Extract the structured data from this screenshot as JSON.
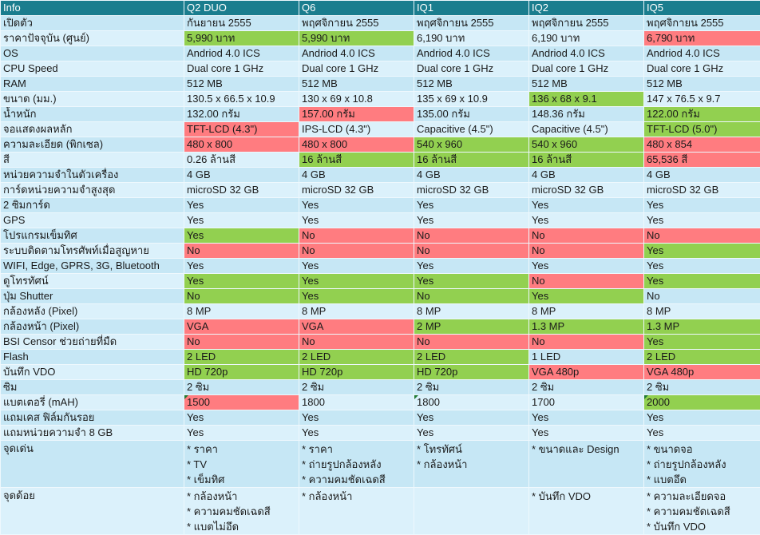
{
  "header": {
    "columns": [
      "Info",
      "Q2 DUO",
      "Q6",
      "IQ1",
      "IQ2",
      "IQ5"
    ]
  },
  "colors": {
    "header_bg": "#1a7d8e",
    "header_text": "#ffffff",
    "row_odd": "#c6e7f5",
    "row_even": "#dbf1fb",
    "good": "#92d050",
    "bad": "#ff7c80",
    "grid_line": "#eef8fd",
    "error_marker": "#1f7a33",
    "text": "#1a1a1a"
  },
  "rows": [
    {
      "label": "เปิดตัว",
      "cells": [
        {
          "text": "กันยายน 2555"
        },
        {
          "text": "พฤศจิกายน 2555"
        },
        {
          "text": "พฤศจิกายน 2555"
        },
        {
          "text": "พฤศจิกายน 2555"
        },
        {
          "text": "พฤศจิกายน 2555"
        }
      ]
    },
    {
      "label": "ราคาปัจจุบัน (ศูนย์)",
      "cells": [
        {
          "text": "5,990 บาท",
          "highlight": "good"
        },
        {
          "text": "5,990 บาท",
          "highlight": "good"
        },
        {
          "text": "6,190 บาท"
        },
        {
          "text": "6,190 บาท"
        },
        {
          "text": "6,790 บาท",
          "highlight": "bad"
        }
      ]
    },
    {
      "label": "OS",
      "cells": [
        {
          "text": "Andriod 4.0 ICS"
        },
        {
          "text": "Andriod 4.0 ICS"
        },
        {
          "text": "Andriod 4.0 ICS"
        },
        {
          "text": "Andriod 4.0 ICS"
        },
        {
          "text": "Andriod 4.0 ICS"
        }
      ]
    },
    {
      "label": "CPU Speed",
      "cells": [
        {
          "text": "Dual core 1 GHz"
        },
        {
          "text": "Dual core 1 GHz"
        },
        {
          "text": "Dual core 1 GHz"
        },
        {
          "text": "Dual core 1 GHz"
        },
        {
          "text": "Dual core 1 GHz"
        }
      ]
    },
    {
      "label": "RAM",
      "cells": [
        {
          "text": "512 MB"
        },
        {
          "text": "512 MB"
        },
        {
          "text": "512 MB"
        },
        {
          "text": "512 MB"
        },
        {
          "text": "512 MB"
        }
      ]
    },
    {
      "label": "ขนาด (มม.)",
      "cells": [
        {
          "text": "130.5 x 66.5 x 10.9"
        },
        {
          "text": "130 x 69 x 10.8"
        },
        {
          "text": "135 x 69 x 10.9"
        },
        {
          "text": "136 x 68 x 9.1",
          "highlight": "good"
        },
        {
          "text": "147 x 76.5 x 9.7"
        }
      ]
    },
    {
      "label": "น้ำหนัก",
      "cells": [
        {
          "text": "132.00 กรัม"
        },
        {
          "text": "157.00 กรัม",
          "highlight": "bad"
        },
        {
          "text": "135.00 กรัม"
        },
        {
          "text": "148.36 กรัม"
        },
        {
          "text": "122.00 กรัม",
          "highlight": "good"
        }
      ]
    },
    {
      "label": "จอแสดงผลหลัก",
      "cells": [
        {
          "text": "TFT-LCD (4.3\")",
          "highlight": "bad"
        },
        {
          "text": "IPS-LCD (4.3\")"
        },
        {
          "text": "Capacitive (4.5\")"
        },
        {
          "text": "Capacitive (4.5\")"
        },
        {
          "text": "TFT-LCD (5.0\")",
          "highlight": "good"
        }
      ]
    },
    {
      "label": "ความละเอียด (พิกเซล)",
      "cells": [
        {
          "text": "480 x 800",
          "highlight": "bad"
        },
        {
          "text": "480 x 800",
          "highlight": "bad"
        },
        {
          "text": "540 x 960",
          "highlight": "good"
        },
        {
          "text": "540 x 960",
          "highlight": "good"
        },
        {
          "text": "480 x 854",
          "highlight": "bad"
        }
      ]
    },
    {
      "label": "สี",
      "cells": [
        {
          "text": "0.26 ล้านสี"
        },
        {
          "text": "16 ล้านสี",
          "highlight": "good"
        },
        {
          "text": "16 ล้านสี",
          "highlight": "good"
        },
        {
          "text": "16 ล้านสี",
          "highlight": "good"
        },
        {
          "text": "65,536 สี",
          "highlight": "bad"
        }
      ]
    },
    {
      "label": "หน่วยความจำในตัวเครื่อง",
      "cells": [
        {
          "text": "4 GB"
        },
        {
          "text": "4 GB"
        },
        {
          "text": "4 GB"
        },
        {
          "text": "4 GB"
        },
        {
          "text": "4 GB"
        }
      ]
    },
    {
      "label": "การ์ดหน่วยความจำสูงสุด",
      "cells": [
        {
          "text": "microSD 32 GB"
        },
        {
          "text": "microSD 32 GB"
        },
        {
          "text": "microSD 32 GB"
        },
        {
          "text": "microSD 32 GB"
        },
        {
          "text": "microSD 32 GB"
        }
      ]
    },
    {
      "label": "2 ซิมการ์ด",
      "cells": [
        {
          "text": "Yes"
        },
        {
          "text": "Yes"
        },
        {
          "text": "Yes"
        },
        {
          "text": "Yes"
        },
        {
          "text": "Yes"
        }
      ]
    },
    {
      "label": "GPS",
      "cells": [
        {
          "text": "Yes"
        },
        {
          "text": "Yes"
        },
        {
          "text": "Yes"
        },
        {
          "text": "Yes"
        },
        {
          "text": "Yes"
        }
      ]
    },
    {
      "label": "โปรแกรมเข็มทิศ",
      "cells": [
        {
          "text": "Yes",
          "highlight": "good"
        },
        {
          "text": "No",
          "highlight": "bad"
        },
        {
          "text": "No",
          "highlight": "bad"
        },
        {
          "text": "No",
          "highlight": "bad"
        },
        {
          "text": "No",
          "highlight": "bad"
        }
      ]
    },
    {
      "label": "ระบบติดตามโทรศัพท์เมื่อสูญหาย",
      "cells": [
        {
          "text": "No",
          "highlight": "bad"
        },
        {
          "text": "No",
          "highlight": "bad"
        },
        {
          "text": "No",
          "highlight": "bad"
        },
        {
          "text": "No",
          "highlight": "bad"
        },
        {
          "text": "Yes",
          "highlight": "good"
        }
      ]
    },
    {
      "label": "WIFI, Edge, GPRS, 3G, Bluetooth",
      "cells": [
        {
          "text": "Yes"
        },
        {
          "text": "Yes"
        },
        {
          "text": "Yes"
        },
        {
          "text": "Yes"
        },
        {
          "text": "Yes"
        }
      ]
    },
    {
      "label": "ดูโทรทัศน์",
      "cells": [
        {
          "text": "Yes",
          "highlight": "good"
        },
        {
          "text": "Yes",
          "highlight": "good"
        },
        {
          "text": "Yes",
          "highlight": "good"
        },
        {
          "text": "No",
          "highlight": "bad"
        },
        {
          "text": "Yes",
          "highlight": "good"
        }
      ]
    },
    {
      "label": "ปุ่ม Shutter",
      "cells": [
        {
          "text": "No",
          "highlight": "good"
        },
        {
          "text": "Yes",
          "highlight": "good"
        },
        {
          "text": "No",
          "highlight": "good"
        },
        {
          "text": "Yes",
          "highlight": "good"
        },
        {
          "text": "No"
        }
      ]
    },
    {
      "label": "กล้องหลัง (Pixel)",
      "cells": [
        {
          "text": "8 MP"
        },
        {
          "text": "8 MP"
        },
        {
          "text": "8 MP"
        },
        {
          "text": "8 MP"
        },
        {
          "text": "8 MP"
        }
      ]
    },
    {
      "label": "กล้องหน้า (Pixel)",
      "cells": [
        {
          "text": "VGA",
          "highlight": "bad"
        },
        {
          "text": "VGA",
          "highlight": "bad"
        },
        {
          "text": "2 MP",
          "highlight": "good"
        },
        {
          "text": "1.3 MP",
          "highlight": "good"
        },
        {
          "text": "1.3 MP",
          "highlight": "good"
        }
      ]
    },
    {
      "label": "BSI Censor ช่วยถ่ายที่มืด",
      "cells": [
        {
          "text": "No",
          "highlight": "bad"
        },
        {
          "text": "No",
          "highlight": "bad"
        },
        {
          "text": "No",
          "highlight": "bad"
        },
        {
          "text": "No",
          "highlight": "bad"
        },
        {
          "text": "Yes",
          "highlight": "good"
        }
      ]
    },
    {
      "label": "Flash",
      "cells": [
        {
          "text": "2 LED",
          "highlight": "good"
        },
        {
          "text": "2 LED",
          "highlight": "good"
        },
        {
          "text": "2 LED",
          "highlight": "good"
        },
        {
          "text": "1 LED"
        },
        {
          "text": "2 LED",
          "highlight": "good"
        }
      ]
    },
    {
      "label": "บันทึก VDO",
      "cells": [
        {
          "text": "HD 720p",
          "highlight": "good"
        },
        {
          "text": "HD 720p",
          "highlight": "good"
        },
        {
          "text": "HD 720p",
          "highlight": "good"
        },
        {
          "text": "VGA 480p",
          "highlight": "bad"
        },
        {
          "text": "VGA 480p",
          "highlight": "bad"
        }
      ]
    },
    {
      "label": "ซิม",
      "cells": [
        {
          "text": "2 ซิม"
        },
        {
          "text": "2 ซิม"
        },
        {
          "text": "2 ซิม"
        },
        {
          "text": "2 ซิม"
        },
        {
          "text": "2 ซิม"
        }
      ]
    },
    {
      "label": "แบตเตอรี่ (mAH)",
      "cells": [
        {
          "text": "1500",
          "highlight": "bad",
          "marker": true
        },
        {
          "text": "1800"
        },
        {
          "text": "1800",
          "marker": true
        },
        {
          "text": "1700"
        },
        {
          "text": "2000",
          "highlight": "good",
          "marker": true
        }
      ]
    },
    {
      "label": "แถมเคส ฟิล์มกันรอย",
      "cells": [
        {
          "text": "Yes"
        },
        {
          "text": "Yes"
        },
        {
          "text": "Yes"
        },
        {
          "text": "Yes"
        },
        {
          "text": "Yes"
        }
      ]
    },
    {
      "label": "แถมหน่วยความจำ 8 GB",
      "cells": [
        {
          "text": "Yes"
        },
        {
          "text": "Yes"
        },
        {
          "text": "Yes"
        },
        {
          "text": "Yes"
        },
        {
          "text": "Yes"
        }
      ]
    },
    {
      "label": "จุดเด่น",
      "cells": [
        {
          "lines": [
            "* ราคา",
            "* TV",
            "* เข็มทิศ"
          ]
        },
        {
          "lines": [
            "* ราคา",
            "* ถ่ายรูปกล้องหลัง",
            "* ความคมชัดเฉดสี"
          ]
        },
        {
          "lines": [
            "* โทรทัศน์",
            "* กล้องหน้า"
          ]
        },
        {
          "lines": [
            "* ขนาดและ Design"
          ]
        },
        {
          "lines": [
            "* ขนาดจอ",
            "* ถ่ายรูปกล้องหลัง",
            "* แบตอึด"
          ]
        }
      ]
    },
    {
      "label": "จุดด้อย",
      "cells": [
        {
          "lines": [
            "* กล้องหน้า",
            "* ความคมชัดเฉดสี",
            "* แบตไม่อึด"
          ]
        },
        {
          "lines": [
            "* กล้องหน้า"
          ]
        },
        {
          "lines": []
        },
        {
          "lines": [
            "* บันทึก VDO"
          ]
        },
        {
          "lines": [
            "* ความละเอียดจอ",
            "* ความคมชัดเฉดสี",
            "* บันทึก VDO"
          ]
        }
      ]
    }
  ]
}
